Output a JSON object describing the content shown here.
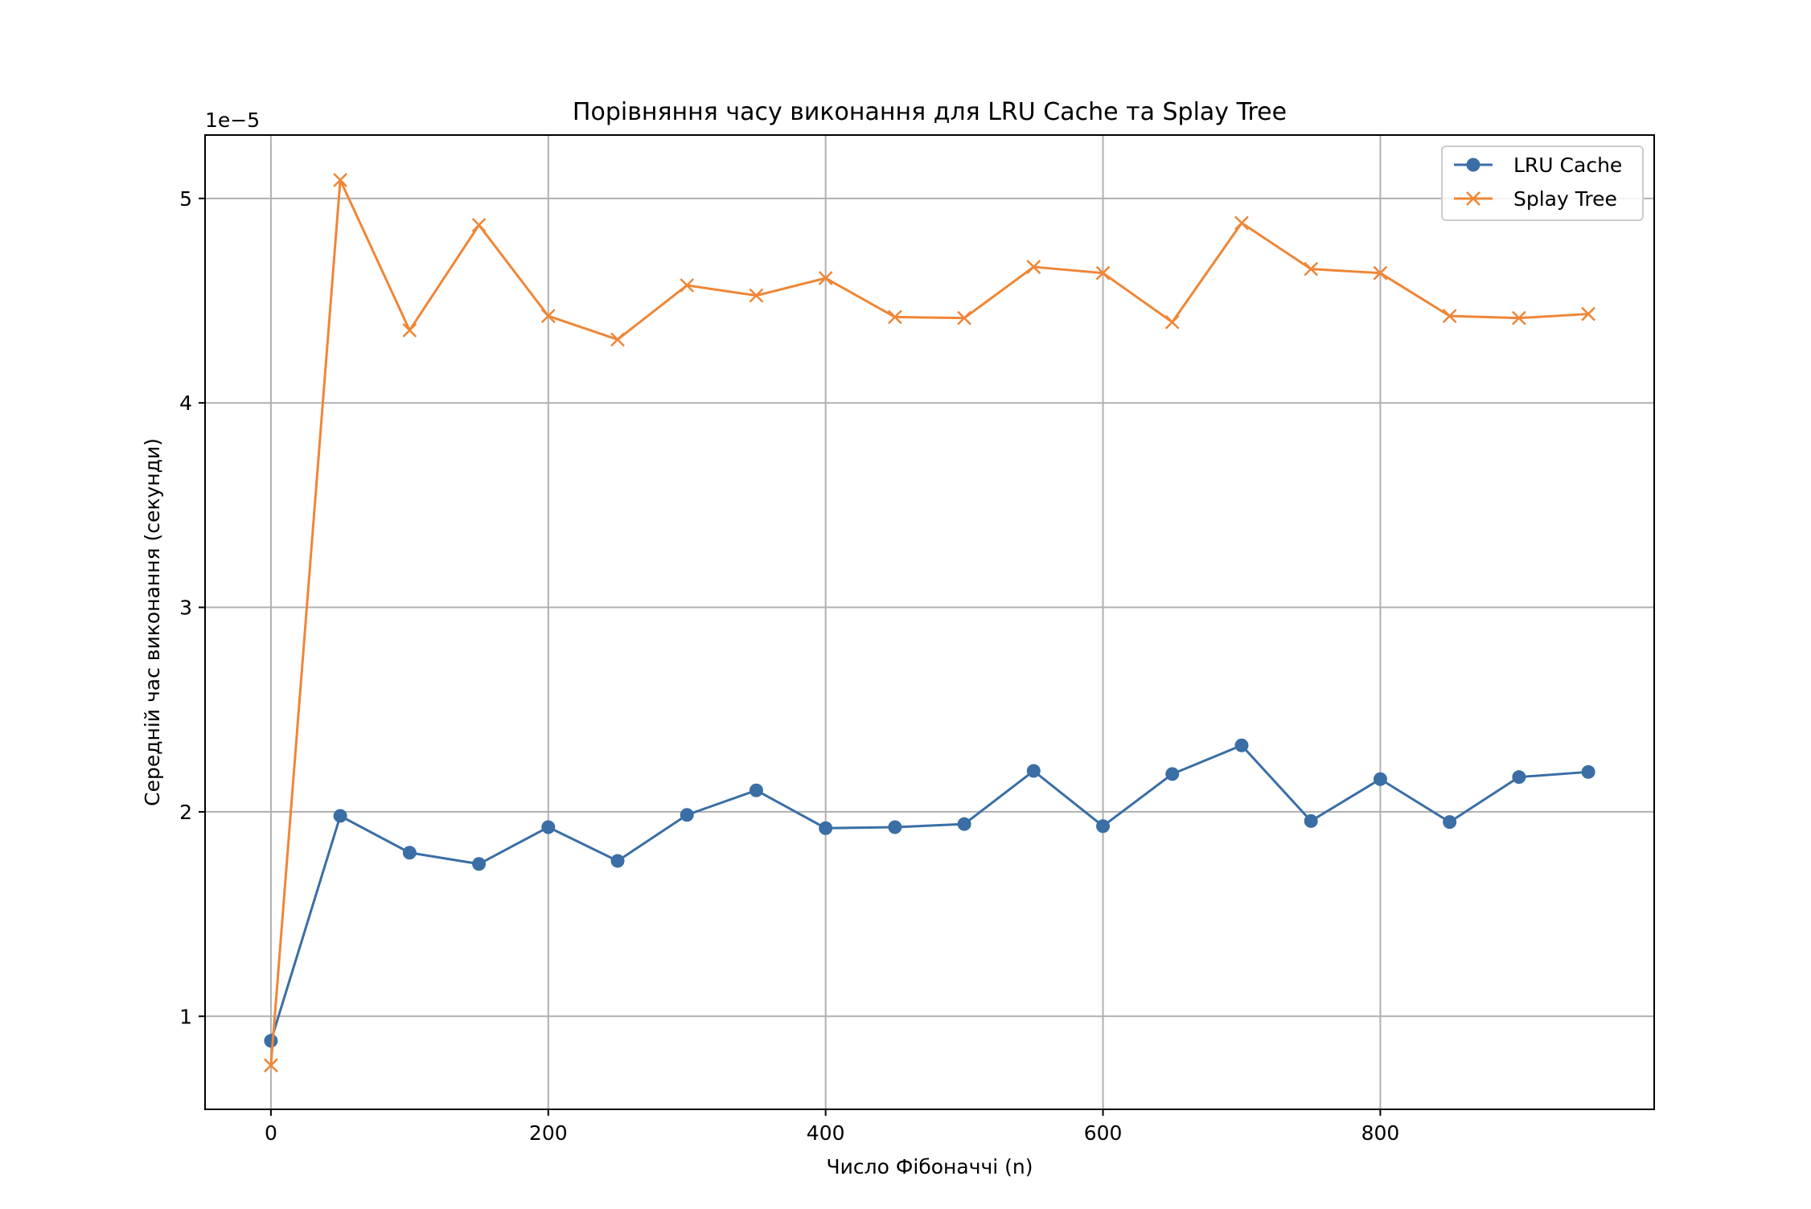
{
  "chart_data": {
    "type": "line",
    "title": "Порівняння часу виконання для LRU Cache та Splay Tree",
    "xlabel": "Число Фібоначчі (n)",
    "ylabel": "Середній час виконання (секунди)",
    "y_offset_text": "1e−5",
    "xlim": [
      -47.5,
      997.5
    ],
    "ylim": [
      5.45e-06,
      5.31e-05
    ],
    "x_ticks": [
      0,
      200,
      400,
      600,
      800
    ],
    "y_ticks": [
      1e-05,
      2e-05,
      3e-05,
      4e-05,
      5e-05
    ],
    "y_tick_labels": [
      "1",
      "2",
      "3",
      "4",
      "5"
    ],
    "grid": true,
    "legend_position": "top-right",
    "x": [
      0,
      50,
      100,
      150,
      200,
      250,
      300,
      350,
      400,
      450,
      500,
      550,
      600,
      650,
      700,
      750,
      800,
      850,
      900,
      950
    ],
    "series": [
      {
        "name": "LRU Cache",
        "color": "#3a6ea5",
        "marker": "circle",
        "values": [
          8.8e-06,
          1.98e-05,
          1.8e-05,
          1.745e-05,
          1.925e-05,
          1.76e-05,
          1.985e-05,
          2.105e-05,
          1.92e-05,
          1.925e-05,
          1.94e-05,
          2.2e-05,
          1.93e-05,
          2.185e-05,
          2.325e-05,
          1.955e-05,
          2.16e-05,
          1.95e-05,
          2.17e-05,
          2.195e-05
        ]
      },
      {
        "name": "Splay Tree",
        "color": "#ef8636",
        "marker": "x",
        "values": [
          7.6e-06,
          5.09e-05,
          4.355e-05,
          4.87e-05,
          4.425e-05,
          4.31e-05,
          4.575e-05,
          4.525e-05,
          4.61e-05,
          4.42e-05,
          4.415e-05,
          4.665e-05,
          4.635e-05,
          4.395e-05,
          4.88e-05,
          4.655e-05,
          4.635e-05,
          4.425e-05,
          4.415e-05,
          4.435e-05
        ]
      }
    ]
  }
}
